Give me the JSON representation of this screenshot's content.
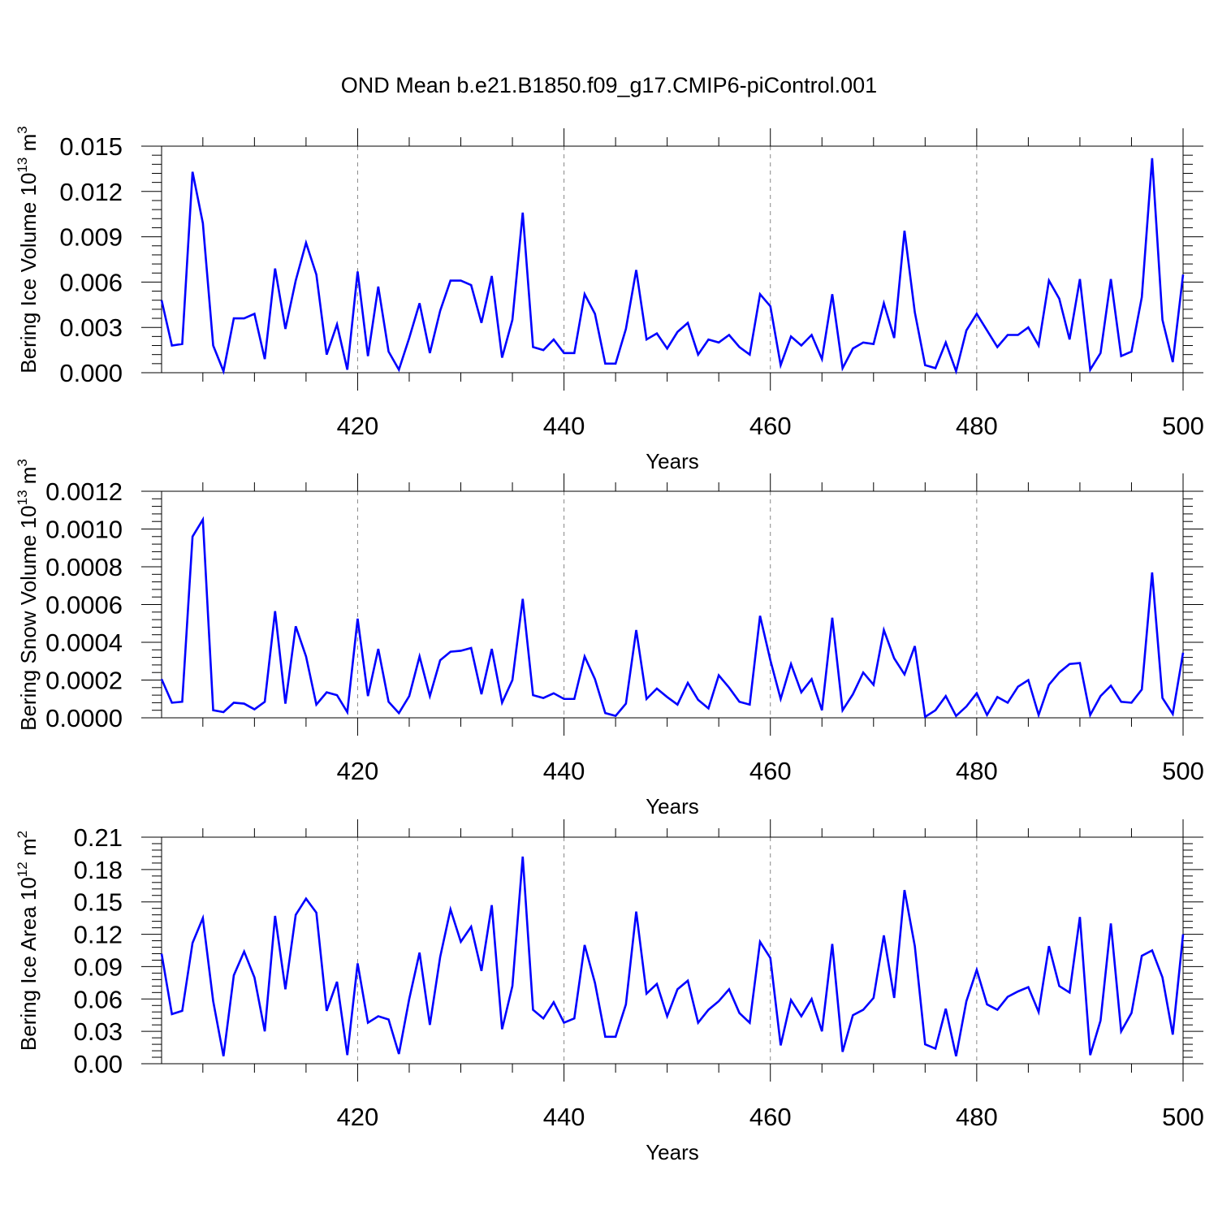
{
  "figure_title": "OND Mean b.e21.B1850.f09_g17.CMIP6-piControl.001",
  "colors": {
    "line": "#0000ff",
    "axis": "#000000",
    "grid": "#888888",
    "background": "#ffffff"
  },
  "chart_data": [
    {
      "type": "line",
      "xlabel": "Years",
      "ylabel": {
        "text": "Bering Ice Volume 10",
        "sup1": "13",
        "unit": " m",
        "sup2": "3"
      },
      "xlim": [
        401,
        500
      ],
      "ylim": [
        0,
        0.015
      ],
      "xticks": [
        420,
        440,
        460,
        480,
        500
      ],
      "xtick_labels": [
        "420",
        "440",
        "460",
        "480",
        "500"
      ],
      "yticks": [
        0,
        0.003,
        0.006,
        0.009,
        0.012,
        0.015
      ],
      "ytick_labels": [
        "0.000",
        "0.003",
        "0.006",
        "0.009",
        "0.012",
        "0.015"
      ],
      "grid": "vertical dashed at major x ticks",
      "series": [
        {
          "x_start": 401,
          "values": [
            0.0048,
            0.0018,
            0.0019,
            0.0133,
            0.0099,
            0.0018,
            0.0001,
            0.0036,
            0.0036,
            0.0039,
            0.0009,
            0.0069,
            0.0029,
            0.0061,
            0.0086,
            0.0065,
            0.0012,
            0.0032,
            0.0002,
            0.0067,
            0.0011,
            0.0057,
            0.0014,
            0.0002,
            0.0023,
            0.0046,
            0.0013,
            0.0041,
            0.0061,
            0.0061,
            0.0058,
            0.0033,
            0.0064,
            0.001,
            0.0035,
            0.0106,
            0.0017,
            0.0015,
            0.0022,
            0.0013,
            0.0013,
            0.0052,
            0.0039,
            0.0006,
            0.0006,
            0.0029,
            0.0068,
            0.0022,
            0.0026,
            0.0016,
            0.0027,
            0.0033,
            0.0012,
            0.0022,
            0.002,
            0.0025,
            0.0017,
            0.0012,
            0.0052,
            0.0044,
            0.0005,
            0.0024,
            0.0018,
            0.0025,
            0.0009,
            0.0052,
            0.0003,
            0.0016,
            0.002,
            0.0019,
            0.0046,
            0.0023,
            0.0094,
            0.004,
            0.0005,
            0.0003,
            0.002,
            0.0001,
            0.0028,
            0.0039,
            0.0028,
            0.0017,
            0.0025,
            0.0025,
            0.003,
            0.0018,
            0.0061,
            0.0049,
            0.0022,
            0.0062,
            0.0002,
            0.0013,
            0.0062,
            0.0011,
            0.0014,
            0.005,
            0.0142,
            0.0035,
            0.0007,
            0.0065
          ]
        }
      ]
    },
    {
      "type": "line",
      "xlabel": "Years",
      "ylabel": {
        "text": "Bering Snow Volume 10",
        "sup1": "13",
        "unit": " m",
        "sup2": "3"
      },
      "xlim": [
        401,
        500
      ],
      "ylim": [
        0,
        0.0012
      ],
      "xticks": [
        420,
        440,
        460,
        480,
        500
      ],
      "xtick_labels": [
        "420",
        "440",
        "460",
        "480",
        "500"
      ],
      "yticks": [
        0,
        0.0002,
        0.0004,
        0.0006,
        0.0008,
        0.001,
        0.0012
      ],
      "ytick_labels": [
        "0.0000",
        "0.0002",
        "0.0004",
        "0.0006",
        "0.0008",
        "0.0010",
        "0.0012"
      ],
      "grid": "vertical dashed at major x ticks",
      "series": [
        {
          "x_start": 401,
          "values": [
            0.000205,
            8e-05,
            8.5e-05,
            0.00096,
            0.00105,
            4e-05,
            3e-05,
            8e-05,
            7.5e-05,
            4.5e-05,
            8.5e-05,
            0.000565,
            7.5e-05,
            0.000485,
            0.000325,
            7e-05,
            0.000135,
            0.00012,
            3e-05,
            0.000525,
            0.000115,
            0.000365,
            8.5e-05,
            2.5e-05,
            0.000115,
            0.000325,
            0.000115,
            0.000305,
            0.00035,
            0.000355,
            0.00037,
            0.000125,
            0.000365,
            8e-05,
            0.0002,
            0.00063,
            0.00012,
            0.000105,
            0.00013,
            0.0001,
            0.0001,
            0.000325,
            0.000205,
            2.5e-05,
            1e-05,
            7.5e-05,
            0.000465,
            0.0001,
            0.000155,
            0.00011,
            7e-05,
            0.000185,
            9.5e-05,
            5e-05,
            0.000225,
            0.00016,
            8.5e-05,
            7e-05,
            0.00054,
            0.000305,
            0.0001,
            0.000285,
            0.000135,
            0.000205,
            4e-05,
            0.00053,
            4e-05,
            0.000125,
            0.00024,
            0.000175,
            0.000465,
            0.000315,
            0.00023,
            0.00038,
            5e-06,
            4e-05,
            0.000115,
            1e-05,
            6e-05,
            0.00013,
            1.5e-05,
            0.00011,
            8e-05,
            0.000165,
            0.0002,
            1.5e-05,
            0.000175,
            0.00024,
            0.000285,
            0.00029,
            1.5e-05,
            0.000115,
            0.00017,
            8.5e-05,
            8e-05,
            0.00015,
            0.00077,
            0.000105,
            2e-05,
            0.000345
          ]
        }
      ]
    },
    {
      "type": "line",
      "xlabel": "Years",
      "ylabel": {
        "text": "Bering Ice Area 10",
        "sup1": "12",
        "unit": " m",
        "sup2": "2"
      },
      "xlim": [
        401,
        500
      ],
      "ylim": [
        0,
        0.21
      ],
      "xticks": [
        420,
        440,
        460,
        480,
        500
      ],
      "xtick_labels": [
        "420",
        "440",
        "460",
        "480",
        "500"
      ],
      "yticks": [
        0,
        0.03,
        0.06,
        0.09,
        0.12,
        0.15,
        0.18,
        0.21
      ],
      "ytick_labels": [
        "0.00",
        "0.03",
        "0.06",
        "0.09",
        "0.12",
        "0.15",
        "0.18",
        "0.21"
      ],
      "grid": "vertical dashed at major x ticks",
      "series": [
        {
          "x_start": 401,
          "values": [
            0.102,
            0.046,
            0.049,
            0.112,
            0.135,
            0.058,
            0.007,
            0.082,
            0.104,
            0.08,
            0.03,
            0.137,
            0.069,
            0.138,
            0.153,
            0.14,
            0.049,
            0.076,
            0.008,
            0.093,
            0.038,
            0.044,
            0.041,
            0.009,
            0.06,
            0.103,
            0.036,
            0.099,
            0.143,
            0.113,
            0.127,
            0.086,
            0.147,
            0.032,
            0.072,
            0.192,
            0.05,
            0.042,
            0.057,
            0.038,
            0.042,
            0.11,
            0.075,
            0.025,
            0.025,
            0.055,
            0.141,
            0.065,
            0.074,
            0.044,
            0.069,
            0.077,
            0.038,
            0.05,
            0.058,
            0.069,
            0.047,
            0.038,
            0.113,
            0.098,
            0.017,
            0.059,
            0.044,
            0.06,
            0.03,
            0.111,
            0.011,
            0.045,
            0.05,
            0.061,
            0.119,
            0.061,
            0.161,
            0.109,
            0.018,
            0.014,
            0.051,
            0.007,
            0.058,
            0.087,
            0.055,
            0.05,
            0.062,
            0.067,
            0.071,
            0.048,
            0.109,
            0.072,
            0.066,
            0.136,
            0.008,
            0.04,
            0.13,
            0.03,
            0.047,
            0.1,
            0.105,
            0.08,
            0.027,
            0.12
          ]
        }
      ]
    }
  ]
}
